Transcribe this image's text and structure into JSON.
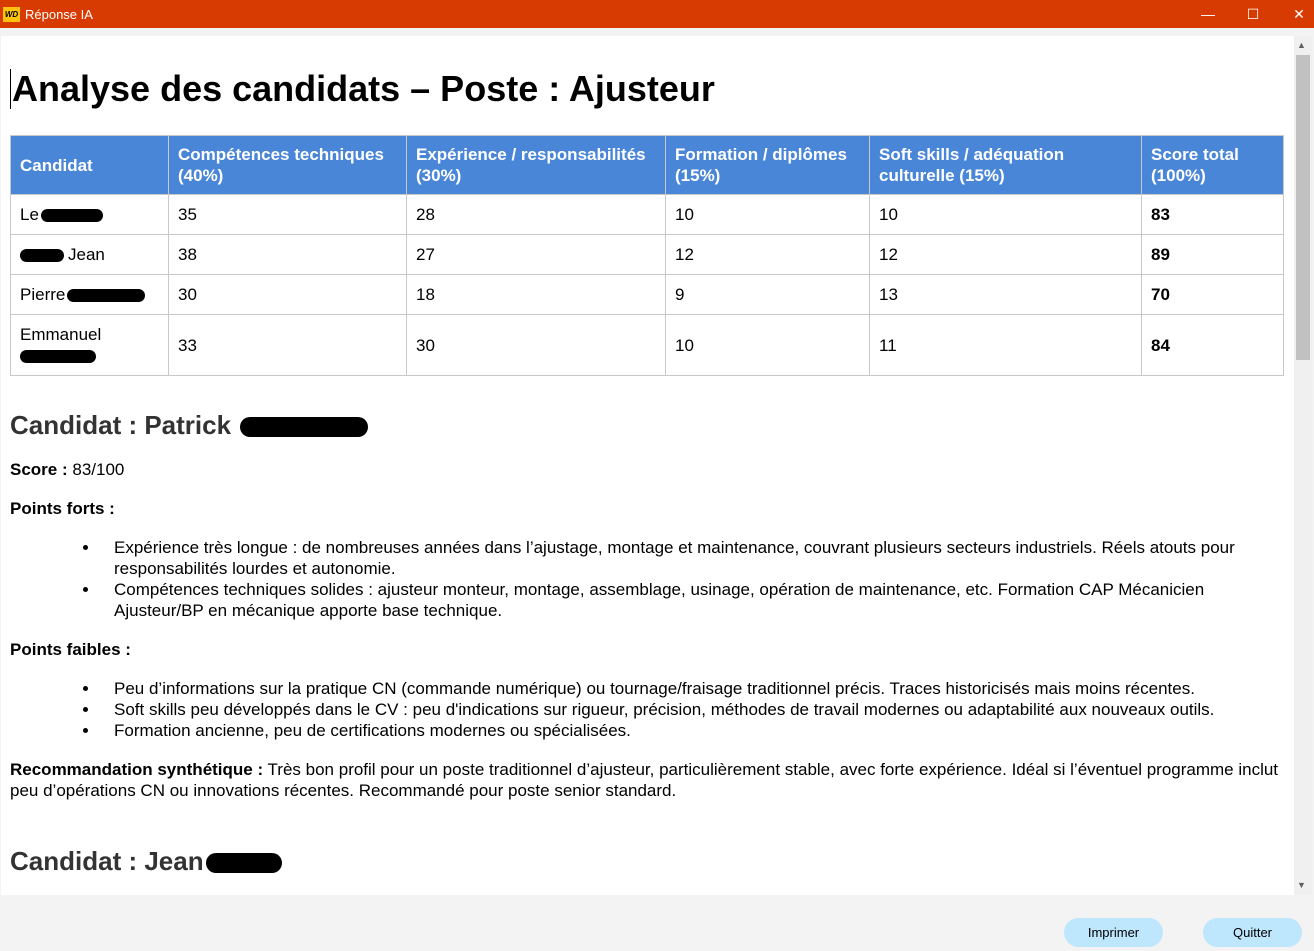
{
  "window": {
    "title": "Réponse IA",
    "logo_text": "WD",
    "minimize": "—",
    "maximize": "☐",
    "close": "✕"
  },
  "doc": {
    "title": "Analyse des candidats – Poste : Ajusteur",
    "table": {
      "headers": [
        "Candidat",
        "Compétences techniques (40%)",
        "Expérience / responsabilités (30%)",
        "Formation / diplômes (15%)",
        "Soft skills / adéquation culturelle (15%)",
        "Score total (100%)"
      ],
      "rows": [
        {
          "name": "Le",
          "tech": "35",
          "exp": "28",
          "form": "10",
          "soft": "10",
          "total": "83"
        },
        {
          "name": "Jean",
          "tech": "38",
          "exp": "27",
          "form": "12",
          "soft": "12",
          "total": "89"
        },
        {
          "name": "Pierre",
          "tech": "30",
          "exp": "18",
          "form": "9",
          "soft": "13",
          "total": "70"
        },
        {
          "name": "Emmanuel",
          "tech": "33",
          "exp": "30",
          "form": "10",
          "soft": "11",
          "total": "84"
        }
      ]
    },
    "candidate1": {
      "heading": "Candidat : Patrick",
      "score_label": "Score :",
      "score_value": " 83/100",
      "strengths_label": "Points forts :",
      "strengths": [
        "Expérience très longue : de nombreuses années dans l’ajustage, montage et maintenance, couvrant plusieurs secteurs industriels. Réels atouts pour responsabilités lourdes et autonomie.",
        "Compétences techniques solides : ajusteur monteur, montage, assemblage, usinage, opération de maintenance, etc. Formation CAP Mécanicien Ajusteur/BP en mécanique apporte base technique."
      ],
      "weaknesses_label": "Points faibles :",
      "weaknesses": [
        "Peu d’informations sur la pratique CN (commande numérique) ou tournage/fraisage traditionnel précis. Traces historicisés mais moins récentes.",
        "Soft skills peu développés dans le CV : peu d'indications sur rigueur, précision, méthodes de travail modernes ou adaptabilité aux nouveaux outils.",
        "Formation ancienne, peu de certifications modernes ou spécialisées."
      ],
      "reco_label": "Recommandation synthétique :",
      "reco_text": " Très bon profil pour un poste traditionnel d’ajusteur, particulièrement stable, avec forte expérience. Idéal si l’éventuel programme inclut peu d’opérations CN ou innovations récentes. Recommandé pour poste senior standard."
    },
    "candidate2": {
      "heading": "Candidat : Jean"
    }
  },
  "buttons": {
    "print": "Imprimer",
    "quit": "Quitter"
  }
}
